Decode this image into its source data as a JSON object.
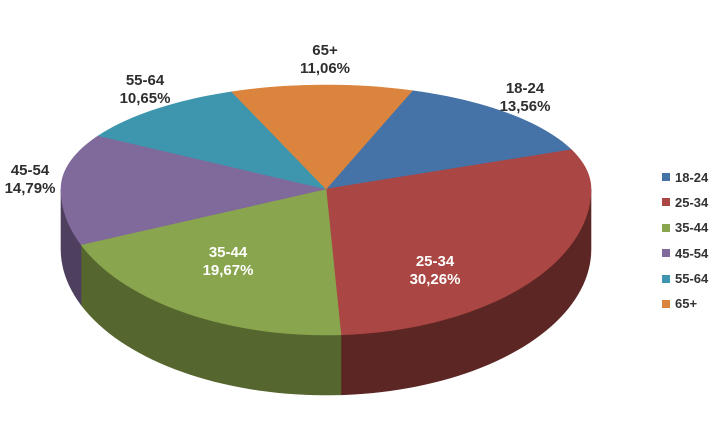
{
  "chart_data": {
    "type": "pie",
    "style": "3d",
    "title": "",
    "legend_position": "right",
    "decimal_separator": ",",
    "value_suffix": "%",
    "background": "#FFFFFF",
    "label_color_outside": "#2E2E2E",
    "label_color_inside": "#FFFFFF",
    "slices": [
      {
        "label": "18-24",
        "value": 13.56,
        "display_value": "13,56%",
        "color": "#4572A7",
        "side_color": "#294464"
      },
      {
        "label": "25-34",
        "value": 30.26,
        "display_value": "30,26%",
        "color": "#AA4643",
        "side_color": "#5C2624"
      },
      {
        "label": "35-44",
        "value": 19.67,
        "display_value": "19,67%",
        "color": "#89A54E",
        "side_color": "#55662F"
      },
      {
        "label": "45-54",
        "value": 14.79,
        "display_value": "14,79%",
        "color": "#80699B",
        "side_color": "#4D3F5D"
      },
      {
        "label": "55-64",
        "value": 10.65,
        "display_value": "10,65%",
        "color": "#3D96AE",
        "side_color": "#255A68"
      },
      {
        "label": "65+",
        "value": 11.06,
        "display_value": "11,06%",
        "color": "#DB843D",
        "side_color": "#834F25"
      }
    ]
  },
  "legend": {
    "items": [
      "18-24",
      "25-34",
      "35-44",
      "45-54",
      "55-64",
      "65+"
    ]
  }
}
